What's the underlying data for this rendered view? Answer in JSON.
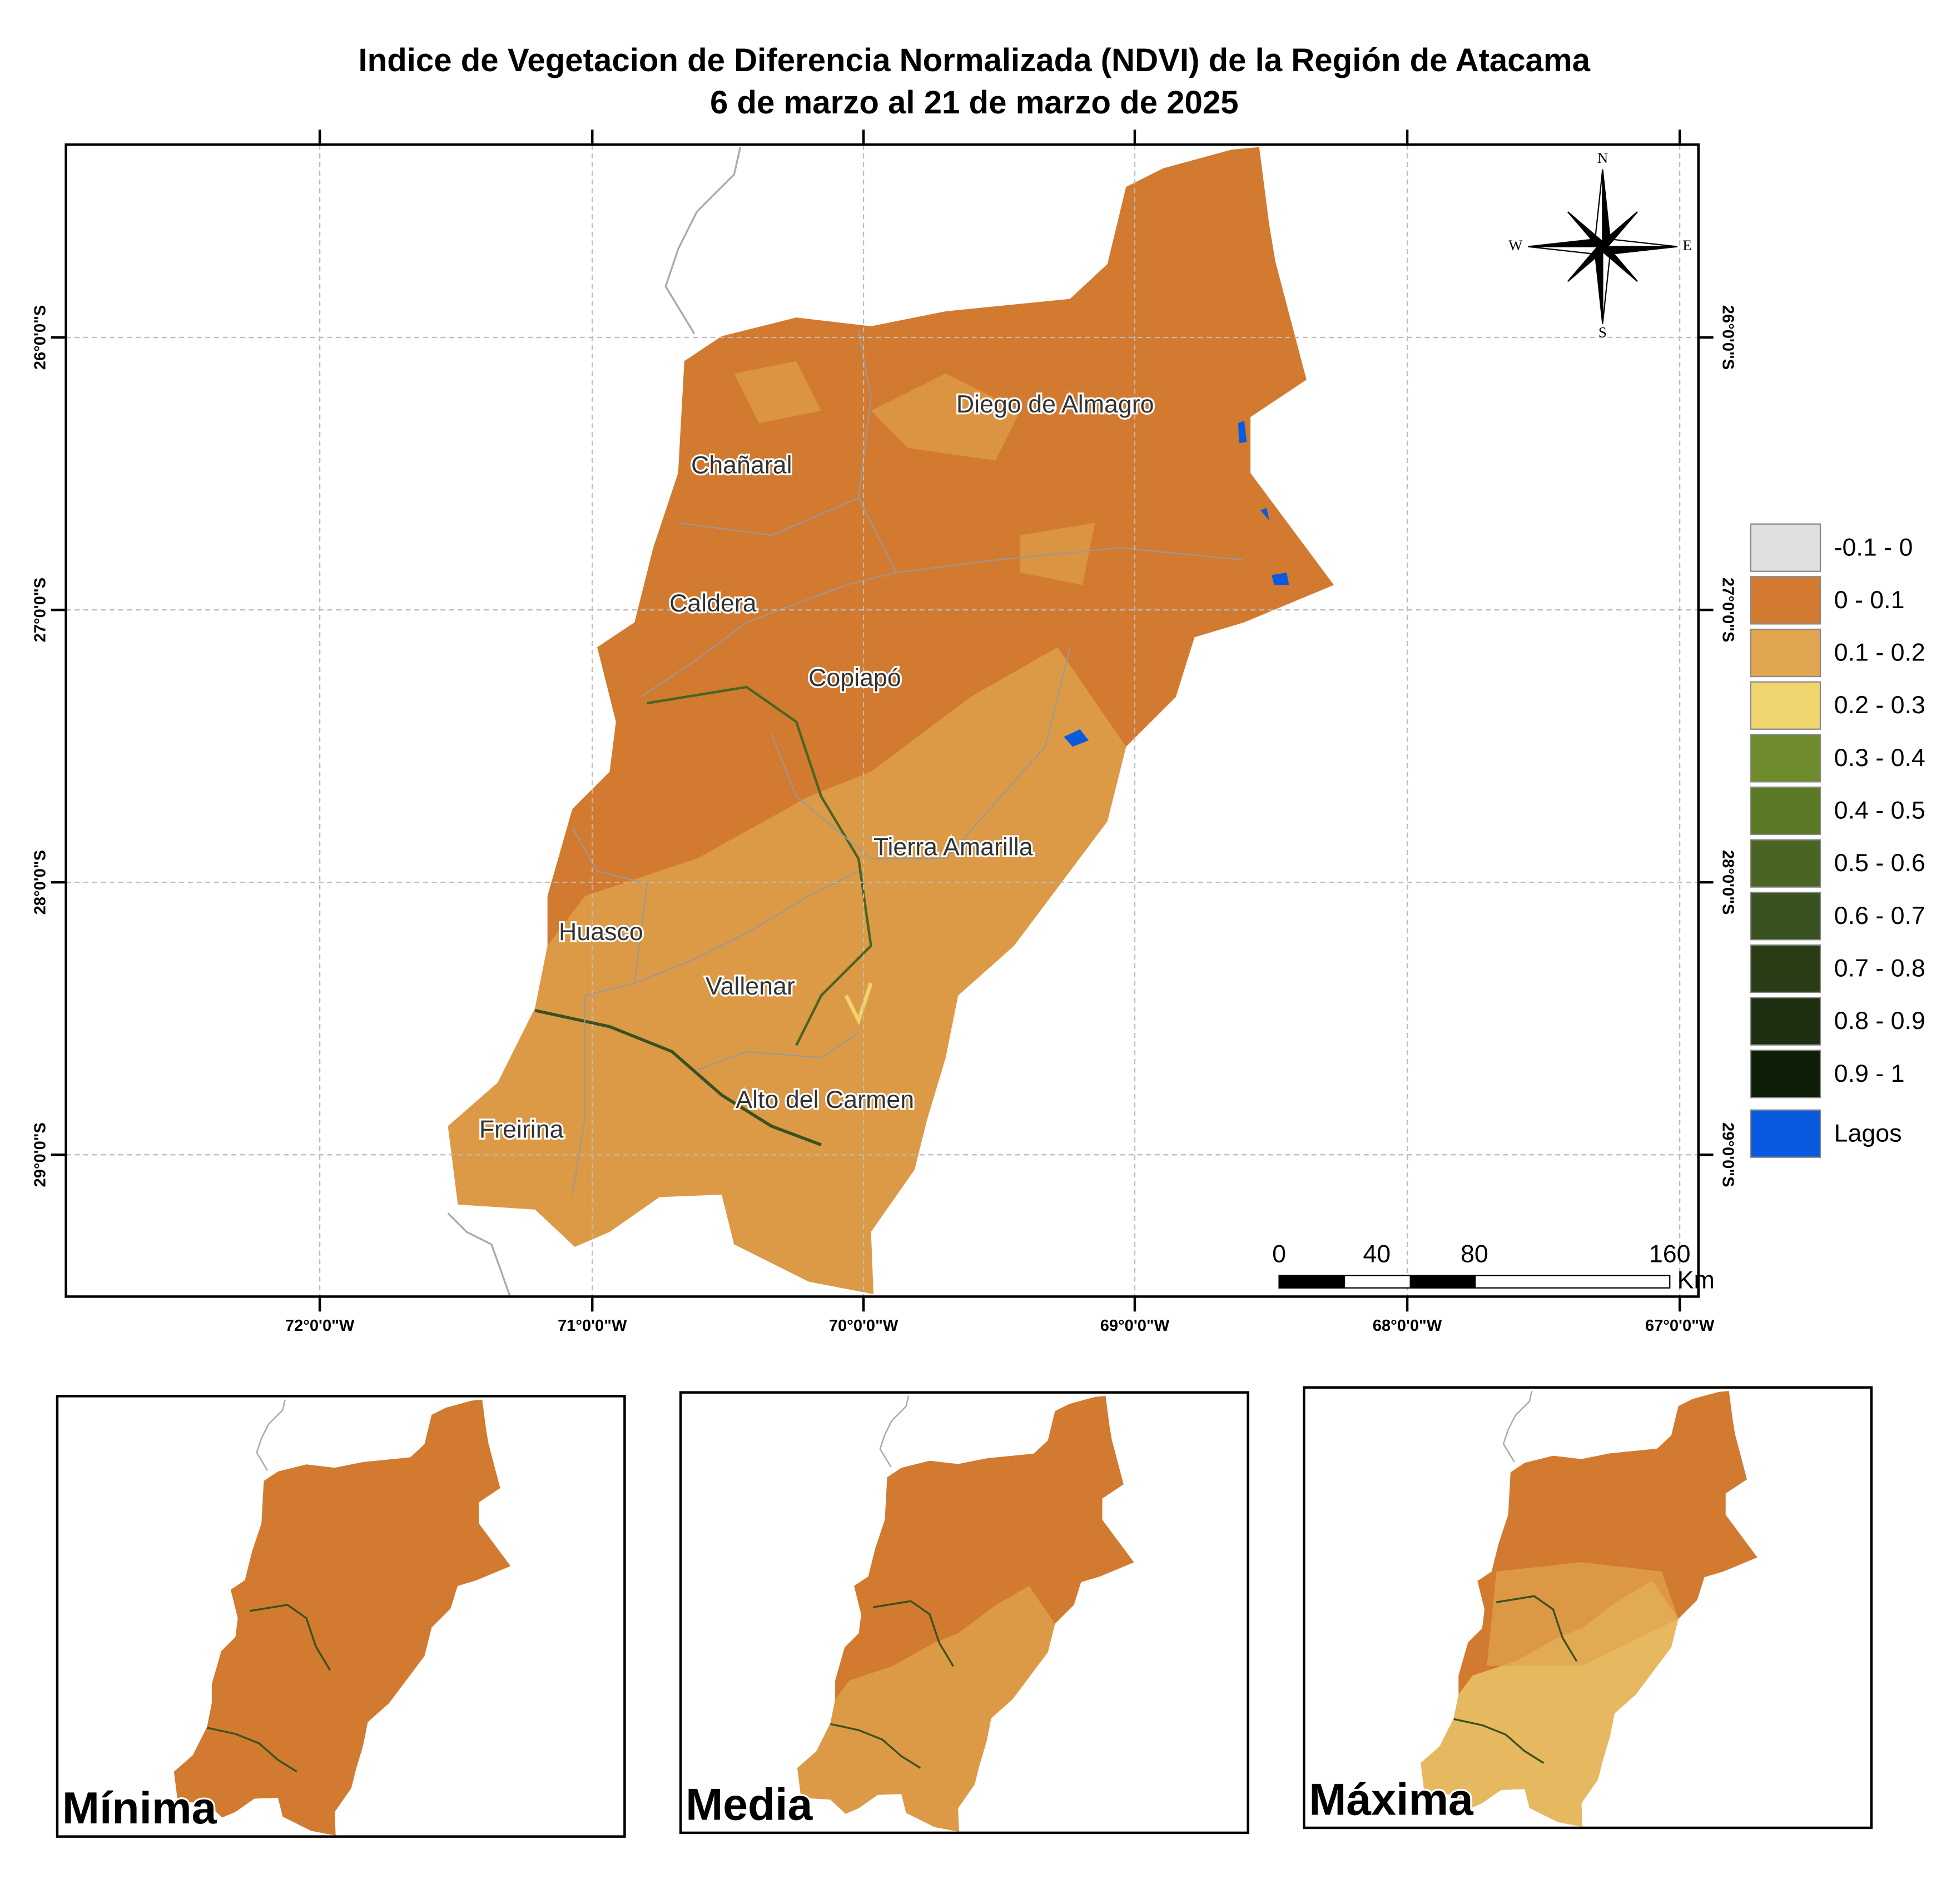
{
  "title": "Indice de Vegetacion de Diferencia Normalizada (NDVI) de la Región de Atacama",
  "subtitle": "6 de marzo al 21 de marzo de 2025",
  "longitude_labels": [
    "72°0'0\"W",
    "71°0'0\"W",
    "70°0'0\"W",
    "69°0'0\"W",
    "68°0'0\"W",
    "67°0'0\"W"
  ],
  "latitude_labels": [
    "26°0'0\"S",
    "27°0'0\"S",
    "28°0'0\"S",
    "29°0'0\"S"
  ],
  "towns": [
    "Diego de Almagro",
    "Chañaral",
    "Caldera",
    "Copiapó",
    "Tierra Amarilla",
    "Huasco",
    "Vallenar",
    "Alto del Carmen",
    "Freirina"
  ],
  "compass": {
    "n": "N",
    "s": "S",
    "e": "E",
    "w": "W"
  },
  "scale_bar": {
    "ticks": [
      0,
      40,
      80,
      160
    ],
    "unit": "Km"
  },
  "legend": [
    {
      "label": "-0.1 - 0",
      "color": "#e0e0e0"
    },
    {
      "label": "0 - 0.1",
      "color": "#d27a30"
    },
    {
      "label": "0.1 - 0.2",
      "color": "#e0a54e"
    },
    {
      "label": "0.2 - 0.3",
      "color": "#f0d46e"
    },
    {
      "label": "0.3 - 0.4",
      "color": "#6e8c2c"
    },
    {
      "label": "0.4 - 0.5",
      "color": "#5a7a26"
    },
    {
      "label": "0.5 - 0.6",
      "color": "#4a6424"
    },
    {
      "label": "0.6 - 0.7",
      "color": "#3a5220"
    },
    {
      "label": "0.7 - 0.8",
      "color": "#2a3c16"
    },
    {
      "label": "0.8 - 0.9",
      "color": "#1e2e10"
    },
    {
      "label": "0.9 - 1",
      "color": "#0f1e08"
    },
    {
      "label": "Lagos",
      "color": "#0a5ae0"
    }
  ],
  "insets": [
    "Mínima",
    "Media",
    "Máxima"
  ]
}
